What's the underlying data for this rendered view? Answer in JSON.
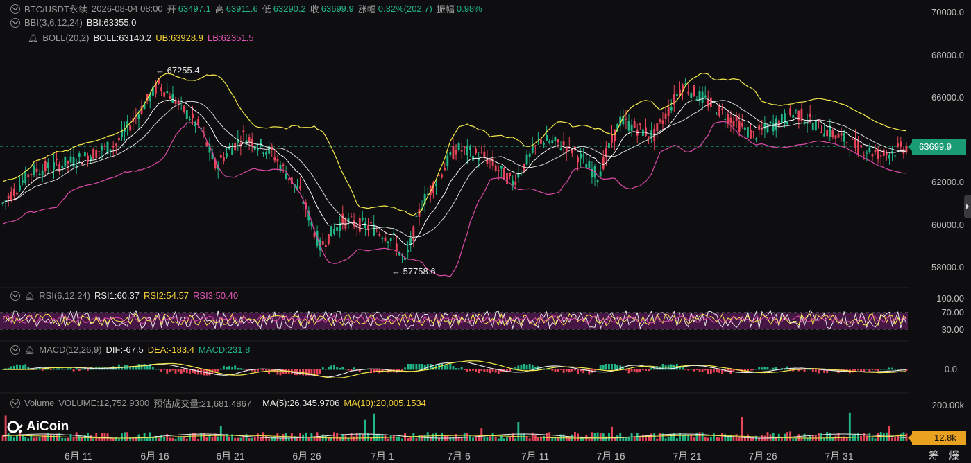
{
  "header": {
    "symbol": "BTC/USDT永续",
    "datetime": "2026-08-04 08:00",
    "open_label": "开",
    "open": "63497.1",
    "high_label": "高",
    "high": "63911.6",
    "low_label": "低",
    "low": "63290.2",
    "close_label": "收",
    "close": "63699.9",
    "change_label": "涨幅",
    "change": "0.32%(202.7)",
    "amplitude_label": "振幅",
    "amplitude": "0.98%"
  },
  "indicators": {
    "bbi": {
      "name": "BBI(3,6,12,24)",
      "value": "BBI:63355.0"
    },
    "boll": {
      "name": "BOLL(20,2)",
      "mid": "BOLL:63140.2",
      "ub": "UB:63928.9",
      "lb": "LB:62351.5"
    },
    "rsi": {
      "name": "RSI(6,12,24)",
      "rsi1": "RSI1:60.37",
      "rsi2": "RSI2:54.57",
      "rsi3": "RSI3:50.40"
    },
    "macd": {
      "name": "MACD(12,26,9)",
      "dif": "DIF:-67.5",
      "dea": "DEA:-183.4",
      "macd": "MACD:231.8"
    },
    "volume": {
      "name": "Volume",
      "volume": "VOLUME:12,752.9300",
      "estimated": "预估成交量:21,681.4867",
      "ma5": "MA(5):26,345.9706",
      "ma10": "MA(10):20,005.1534"
    }
  },
  "price_axis": [
    "70000.0",
    "68000.0",
    "66000.0",
    "62000.0",
    "60000.0",
    "58000.0"
  ],
  "rsi_axis": [
    "100.00",
    "70.00",
    "30.00"
  ],
  "macd_axis": [
    "0.0"
  ],
  "volume_axis": [
    "200.00k"
  ],
  "current_price_tag": "63699.9",
  "current_volume_tag": "12.8k",
  "annotations": {
    "high": "← 67255.4",
    "low": "← 57758.6"
  },
  "date_axis": [
    "6月 11",
    "6月 16",
    "6月 21",
    "6月 26",
    "7月 1",
    "7月 6",
    "7月 11",
    "7月 16",
    "7月 21",
    "7月 26",
    "7月 31"
  ],
  "footer_buttons": [
    "筹",
    "爆"
  ],
  "logo_text": "AiCoin",
  "colors": {
    "up": "#21b686",
    "down": "#e8455a",
    "ub": "#f5e94a",
    "lb": "#d94aa8",
    "mid": "#d9d9d9",
    "bbi": "#ffffff",
    "rsi_band": "#5a1a55"
  },
  "chart_data": {
    "type": "candlestick",
    "price_ylim": [
      56500,
      70500
    ],
    "key_points": [
      {
        "date": "6月 16",
        "high": 67255.4
      },
      {
        "date": "7月 1",
        "low": 57758.6
      },
      {
        "date": "8月 4",
        "close": 63699.9
      }
    ]
  }
}
